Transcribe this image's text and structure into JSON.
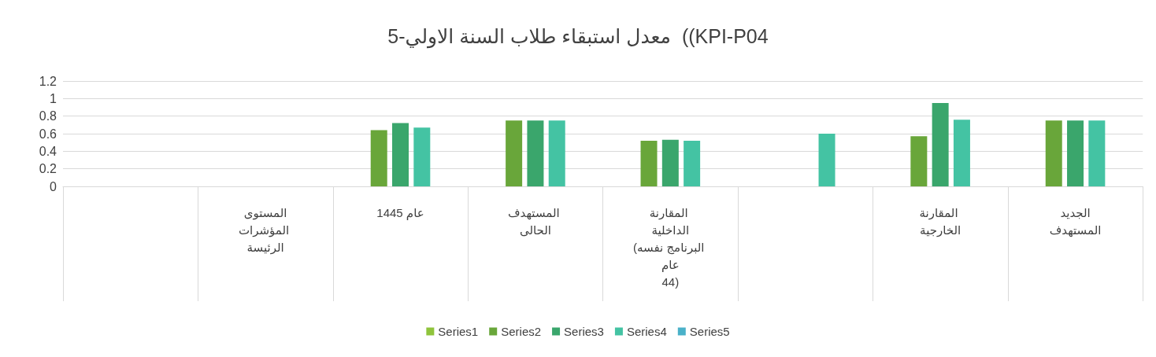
{
  "chart_data": {
    "type": "bar",
    "title": "5-معدل استبقاء طلاب السنة الاولي  ((KPI-P04",
    "categories": [
      null,
      "المستوى\nالمؤشرات الرئيسة",
      "عام 1445",
      "المستهدف الحالى",
      "المقارنة الداخلية\n(البرنامج نفسه عام\n44)",
      null,
      "المقارنة الخارجية",
      "الجديد\nالمستهدف"
    ],
    "series": [
      {
        "name": "Series1",
        "color": "#8fc43c",
        "values": [
          null,
          null,
          null,
          null,
          null,
          null,
          null,
          null
        ]
      },
      {
        "name": "Series2",
        "color": "#69a63a",
        "values": [
          null,
          null,
          0.64,
          0.75,
          0.52,
          null,
          0.57,
          0.75
        ]
      },
      {
        "name": "Series3",
        "color": "#3aa66c",
        "values": [
          null,
          null,
          0.72,
          0.75,
          0.53,
          null,
          0.95,
          0.75
        ]
      },
      {
        "name": "Series4",
        "color": "#44c3a3",
        "values": [
          null,
          null,
          0.67,
          0.75,
          0.52,
          0.6,
          0.76,
          0.75
        ]
      },
      {
        "name": "Series5",
        "color": "#4ab1c9",
        "values": [
          null,
          null,
          null,
          null,
          null,
          null,
          null,
          null
        ]
      }
    ],
    "ylim": [
      0,
      1.2
    ],
    "yticks": [
      0,
      0.2,
      0.4,
      0.6,
      0.8,
      1,
      1.2
    ],
    "grid": "y",
    "legend": "bottom"
  }
}
